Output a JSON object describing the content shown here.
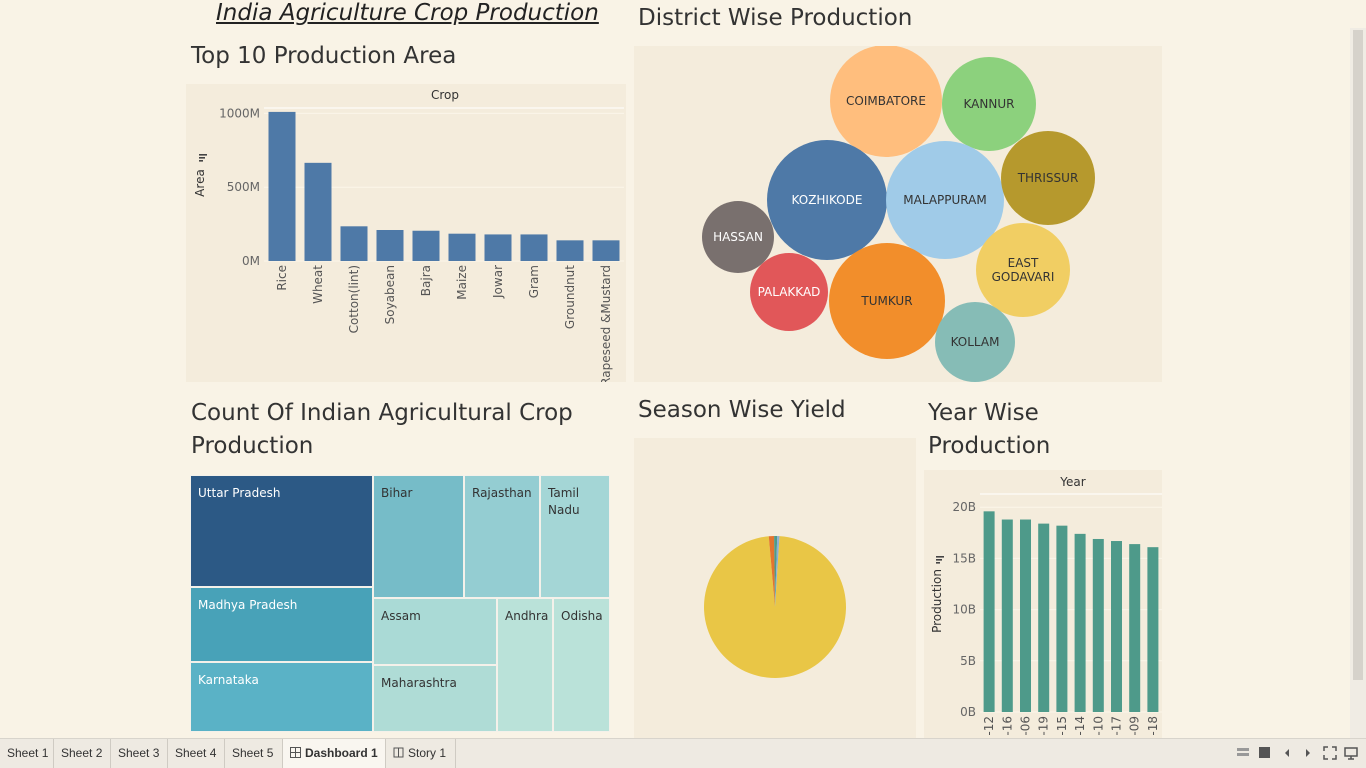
{
  "dashboard": {
    "title": "India Agriculture Crop Production",
    "sections": {
      "top10": "Top 10 Production Area",
      "district": "District Wise Production",
      "count": "Count Of Indian Agricultural Crop Production",
      "season": "Season Wise Yield",
      "year": "Year Wise Production"
    }
  },
  "chart_data": [
    {
      "type": "bar",
      "title": "Top 10 Production Area",
      "header": "Crop",
      "ylabel": "Area",
      "categories": [
        "Rice",
        "Wheat",
        "Cotton(lint)",
        "Soyabean",
        "Bajra",
        "Maize",
        "Jowar",
        "Gram",
        "Groundnut",
        "Rapeseed &Mustard"
      ],
      "values": [
        1010,
        665,
        235,
        210,
        205,
        185,
        180,
        180,
        140,
        140
      ],
      "unit": "M",
      "yticks": [
        "0M",
        "500M",
        "1000M"
      ],
      "ylim": [
        0,
        1050
      ],
      "color": "#4e79a7"
    },
    {
      "type": "bubble",
      "title": "District Wise Production",
      "bubbles": [
        {
          "label": "COIMBATORE",
          "color": "#ffbe7d"
        },
        {
          "label": "KANNUR",
          "color": "#8cd17d"
        },
        {
          "label": "KOZHIKODE",
          "color": "#4e79a7"
        },
        {
          "label": "MALAPPURAM",
          "color": "#a0cbe8"
        },
        {
          "label": "THRISSUR",
          "color": "#b6992d"
        },
        {
          "label": "HASSAN",
          "color": "#79706e"
        },
        {
          "label": "EAST GODAVARI",
          "color": "#f1ce63"
        },
        {
          "label": "PALAKKAD",
          "color": "#e15759"
        },
        {
          "label": "TUMKUR",
          "color": "#f28e2b"
        },
        {
          "label": "KOLLAM",
          "color": "#86bcb6"
        }
      ]
    },
    {
      "type": "treemap",
      "title": "Count Of Indian Agricultural Crop Production",
      "cells": [
        {
          "label": "Uttar Pradesh",
          "color": "#2c5985"
        },
        {
          "label": "Madhya Pradesh",
          "color": "#48a2b8"
        },
        {
          "label": "Karnataka",
          "color": "#5ab2c6"
        },
        {
          "label": "Bihar",
          "color": "#76bcc8"
        },
        {
          "label": "Rajasthan",
          "color": "#94cdd2"
        },
        {
          "label": "Tamil Nadu",
          "color": "#a4d6d6"
        },
        {
          "label": "Assam",
          "color": "#aadad6"
        },
        {
          "label": "Maharashtra",
          "color": "#afdcd6"
        },
        {
          "label": "Andhra",
          "color": "#bae2d9"
        },
        {
          "label": "Odisha",
          "color": "#bae2d9"
        }
      ]
    },
    {
      "type": "pie",
      "title": "Season Wise Yield",
      "slices": [
        {
          "color": "#e9c646",
          "value": 97.6
        },
        {
          "color": "#e3742f",
          "value": 1.2
        },
        {
          "color": "#4e9a8a",
          "value": 0.7
        },
        {
          "color": "#8ab0d4",
          "value": 0.5
        }
      ]
    },
    {
      "type": "bar",
      "title": "Year Wise Production",
      "header": "Year",
      "ylabel": "Production",
      "categories": [
        "-12",
        "-16",
        "-06",
        "-19",
        "-15",
        "-14",
        "-10",
        "-17",
        "-09",
        "-18"
      ],
      "values": [
        19.6,
        18.8,
        18.8,
        18.4,
        18.2,
        17.4,
        16.9,
        16.7,
        16.4,
        16.1
      ],
      "unit": "B",
      "yticks": [
        "0B",
        "5B",
        "10B",
        "15B",
        "20B"
      ],
      "ylim": [
        0,
        21
      ],
      "color": "#4e9a8a"
    }
  ],
  "tabs": [
    {
      "label": "Sheet 1",
      "active": false
    },
    {
      "label": "Sheet 2",
      "active": false
    },
    {
      "label": "Sheet 3",
      "active": false
    },
    {
      "label": "Sheet 4",
      "active": false
    },
    {
      "label": "Sheet 5",
      "active": false
    },
    {
      "label": "Dashboard 1",
      "active": true,
      "icon": "dashboard-icon"
    },
    {
      "label": "Story 1",
      "active": false,
      "icon": "story-icon"
    }
  ],
  "toolbar_icons": [
    "grid-view-icon",
    "single-view-icon",
    "prev-sheet-icon",
    "next-sheet-icon",
    "fit-icon",
    "presentation-icon"
  ]
}
